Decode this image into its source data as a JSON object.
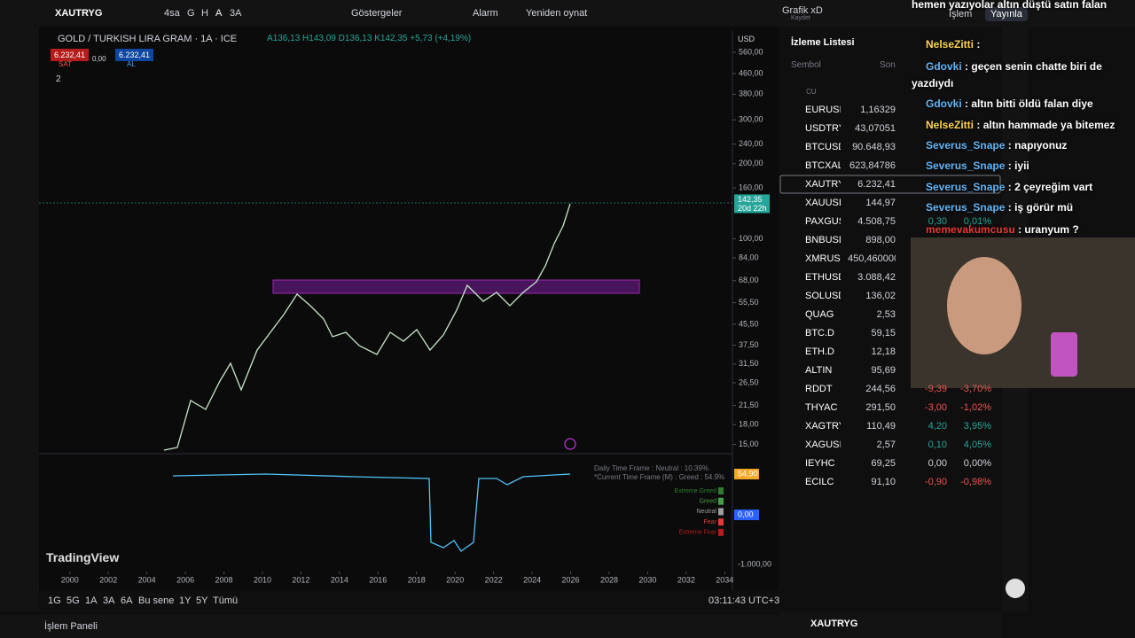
{
  "toolbar": {
    "symbol": "XAUTRYG",
    "intervals": [
      "4sa",
      "G",
      "H",
      "A",
      "3A"
    ],
    "indicators": "Göstergeler",
    "alarm": "Alarm",
    "replay": "Yeniden oynat",
    "layout": "Grafik xD",
    "saved": "Kaydet",
    "trade": "İşlem",
    "publish": "Yayınla"
  },
  "chart": {
    "title": "GOLD / TURKISH LIRA GRAM · 1A · ICE",
    "ohlc": "A136,13 H143,09 D136,13 K142,35 +5,73 (+4,19%)",
    "sell_price": "6.232,41",
    "sell": "SAT",
    "spread": "0,00",
    "buy_price": "6.232,41",
    "buy": "AL",
    "indicator_count": "2",
    "currency": "USD",
    "last_price": "142,35",
    "countdown": "20d 22h",
    "logo": "TradingView",
    "ylim": [
      14,
      638
    ],
    "log_scale": true,
    "yticks": [
      {
        "value": 560,
        "label": "560,00"
      },
      {
        "value": 460,
        "label": "460,00"
      },
      {
        "value": 380,
        "label": "380,00"
      },
      {
        "value": 300,
        "label": "300,00"
      },
      {
        "value": 240,
        "label": "240,00"
      },
      {
        "value": 200,
        "label": "200,00"
      },
      {
        "value": 160,
        "label": "160,00"
      },
      {
        "value": 100,
        "label": "100,00"
      },
      {
        "value": 84,
        "label": "84,00"
      },
      {
        "value": 68,
        "label": "68,00"
      },
      {
        "value": 55.5,
        "label": "55,50"
      },
      {
        "value": 45.5,
        "label": "45,50"
      },
      {
        "value": 37.5,
        "label": "37,50"
      },
      {
        "value": 31.5,
        "label": "31,50"
      },
      {
        "value": 26.5,
        "label": "26,50"
      },
      {
        "value": 21.5,
        "label": "21,50"
      },
      {
        "value": 18,
        "label": "18,00"
      },
      {
        "value": 15,
        "label": "15,00"
      }
    ],
    "xlim": [
      1998.4,
      2034.4
    ],
    "xticks": [
      2000,
      2002,
      2004,
      2006,
      2008,
      2010,
      2012,
      2014,
      2016,
      2018,
      2020,
      2022,
      2024,
      2026,
      2028,
      2030,
      2032,
      2034
    ],
    "indicator": {
      "line1": "Daily Time Frame : Neutral : 10.39%",
      "line2": "*Current Time Frame (M) : Greed : 54.9%",
      "legend": [
        "Extreme Greed",
        "Greed",
        "Neutral",
        "Fear",
        "Extreme Fear"
      ],
      "axis_labels": [
        "54,90",
        "0,00",
        "-1.000,00"
      ]
    }
  },
  "bottom": {
    "ranges": [
      "1G",
      "5G",
      "1A",
      "3A",
      "6A",
      "Bu sene",
      "1Y",
      "5Y",
      "Tümü"
    ],
    "clock": "03:11:43 UTC+3",
    "panel": "İşlem Paneli"
  },
  "watchlist": {
    "title": "İzleme Listesi",
    "columns": [
      "Sembol",
      "Son"
    ],
    "group": "CU",
    "rows": [
      [
        "EURUSI",
        "1,16329"
      ],
      [
        "USDTRY",
        "43,07051"
      ],
      [
        "BTCUSDT",
        "90.648,93"
      ],
      [
        "BTCXAL",
        "623,84786"
      ],
      [
        "XAUTRY",
        "6.232,41"
      ],
      [
        "XAUUSI",
        "144,97"
      ],
      [
        "PAXGUSDT",
        "4.508,75",
        "0,30",
        "0,01%"
      ],
      [
        "BNBUSDT",
        "898,00"
      ],
      [
        "XMRUST",
        "450,4600000"
      ],
      [
        "ETHUSDT",
        "3.088,42"
      ],
      [
        "SOLUSDT",
        "136,02"
      ],
      [
        "QUAG",
        "2,53"
      ],
      [
        "BTC.D",
        "59,15"
      ],
      [
        "ETH.D",
        "12,18"
      ],
      [
        "ALTIN",
        "95,69"
      ],
      [
        "RDDT",
        "244,56",
        "-9,39",
        "-3,70%"
      ],
      [
        "THYAC",
        "291,50",
        "-3,00",
        "-1,02%"
      ],
      [
        "XAGTRY",
        "110,49",
        "4,20",
        "3,95%"
      ],
      [
        "XAGUSI",
        "2,57",
        "0,10",
        "4,05%"
      ],
      [
        "IEYHC",
        "69,25",
        "0,00",
        "0,00%"
      ],
      [
        "ECILC",
        "91,10",
        "-0,90",
        "-0,98%"
      ]
    ],
    "footer_symbol": "XAUTRYG"
  },
  "chat": [
    {
      "text": "hemen yazıyolar altın düştü satın falan"
    },
    {
      "user": "NelseZitti",
      "text": ":"
    },
    {
      "user": "Gdovki",
      "text": ": geçen senin chatte biri de yazdıydı"
    },
    {
      "user": "Gdovki",
      "text": ": altın bitti öldü falan diye"
    },
    {
      "user": "NelseZitti",
      "text": ": altın hammade ya bitemez"
    },
    {
      "user": "Severus_Snape",
      "text": ": napıyonuz"
    },
    {
      "user": "Severus_Snape",
      "text": ": iyii"
    },
    {
      "user": "Severus_Snape",
      "text": ": 2 çeyreğim vart"
    },
    {
      "user": "Severus_Snape",
      "text": ": iş görür mü"
    },
    {
      "user": "memevakumcusu",
      "text": ": uranyum ?"
    }
  ]
}
